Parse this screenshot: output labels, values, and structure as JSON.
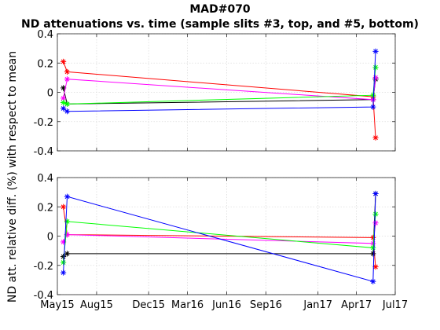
{
  "figure": {
    "title": "MAD#070",
    "subtitle": "ND attenuations vs. time (sample slits #3, top, and #5, bottom)",
    "ylabel": "ND att. relative diff. (%) with respect to mean"
  },
  "chart_data": [
    {
      "type": "line",
      "panel": "top",
      "xlabel": "",
      "x_ticks": [
        "May15",
        "Aug15",
        "Dec15",
        "Mar16",
        "Jun16",
        "Sep16",
        "Jan17",
        "Apr17",
        "Jul17"
      ],
      "xlim": [
        "2015-05-01",
        "2017-07-01"
      ],
      "ylim": [
        -0.4,
        0.4
      ],
      "y_ticks": [
        -0.4,
        -0.2,
        0,
        0.2,
        0.4
      ],
      "y_tick_labels": [
        "-0.4",
        "-0.2",
        "0",
        "0.2",
        "0.4"
      ],
      "grid": true,
      "marker": "*",
      "x_dates": [
        "2015-05-15",
        "2015-05-24",
        "2017-05-10",
        "2017-05-16"
      ],
      "series": [
        {
          "color": "#ff0000",
          "values": [
            0.21,
            0.14,
            -0.03,
            -0.31
          ]
        },
        {
          "color": "#000000",
          "values": [
            0.03,
            -0.08,
            -0.05,
            0.09
          ]
        },
        {
          "color": "#ff00ff",
          "values": [
            -0.04,
            0.09,
            -0.05,
            0.1
          ]
        },
        {
          "color": "#00ff00",
          "values": [
            -0.07,
            -0.08,
            -0.02,
            0.17
          ]
        },
        {
          "color": "#0000ff",
          "values": [
            -0.11,
            -0.13,
            -0.1,
            0.28
          ]
        }
      ]
    },
    {
      "type": "line",
      "panel": "bottom",
      "xlabel": "",
      "x_ticks": [
        "May15",
        "Aug15",
        "Dec15",
        "Mar16",
        "Jun16",
        "Sep16",
        "Jan17",
        "Apr17",
        "Jul17"
      ],
      "xlim": [
        "2015-05-01",
        "2017-07-01"
      ],
      "ylim": [
        -0.4,
        0.4
      ],
      "y_ticks": [
        -0.4,
        -0.2,
        0,
        0.2,
        0.4
      ],
      "y_tick_labels": [
        "-0.4",
        "-0.2",
        "0",
        "0.2",
        "0.4"
      ],
      "grid": true,
      "marker": "*",
      "x_dates": [
        "2015-05-15",
        "2015-05-24",
        "2017-05-10",
        "2017-05-16"
      ],
      "series": [
        {
          "color": "#ff0000",
          "values": [
            0.2,
            0.01,
            -0.01,
            -0.21
          ]
        },
        {
          "color": "#000000",
          "values": [
            -0.14,
            -0.12,
            -0.12,
            0.29
          ]
        },
        {
          "color": "#ff00ff",
          "values": [
            -0.04,
            0.01,
            -0.05,
            0.09
          ]
        },
        {
          "color": "#00ff00",
          "values": [
            -0.18,
            0.1,
            -0.08,
            0.15
          ]
        },
        {
          "color": "#0000ff",
          "values": [
            -0.25,
            0.27,
            -0.31,
            0.29
          ]
        }
      ]
    }
  ]
}
